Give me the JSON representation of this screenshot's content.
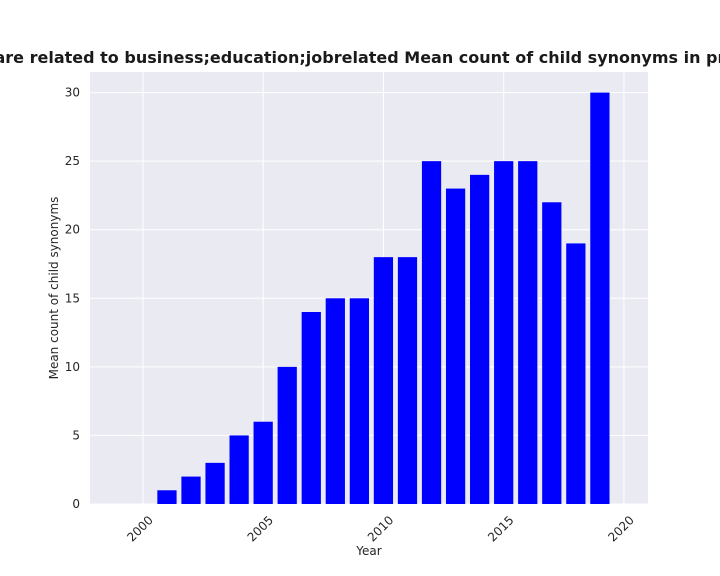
{
  "chart_data": {
    "type": "bar",
    "title": "Categories are related to business;education;jobrelated Mean count of child synonyms in privacy policies",
    "xlabel": "Year",
    "ylabel": "Mean count of child synonyms",
    "x": [
      2001,
      2002,
      2003,
      2004,
      2005,
      2006,
      2007,
      2008,
      2009,
      2010,
      2011,
      2012,
      2013,
      2014,
      2015,
      2016,
      2017,
      2018,
      2019
    ],
    "values": [
      1,
      2,
      3,
      5,
      6,
      10,
      14,
      15,
      15,
      18,
      18,
      25,
      23,
      24,
      25,
      25,
      22,
      19,
      30
    ],
    "xlim": [
      1997.8,
      2021.0
    ],
    "ylim": [
      0,
      31.5
    ],
    "xticks": [
      2000,
      2005,
      2010,
      2015,
      2020
    ],
    "yticks": [
      0,
      5,
      10,
      15,
      20,
      25,
      30
    ],
    "bar_color": "#0000ff",
    "plot_background": "#eaeaf2",
    "grid": true,
    "grid_color": "#ffffff",
    "xtick_rotation": "45 degrees"
  }
}
